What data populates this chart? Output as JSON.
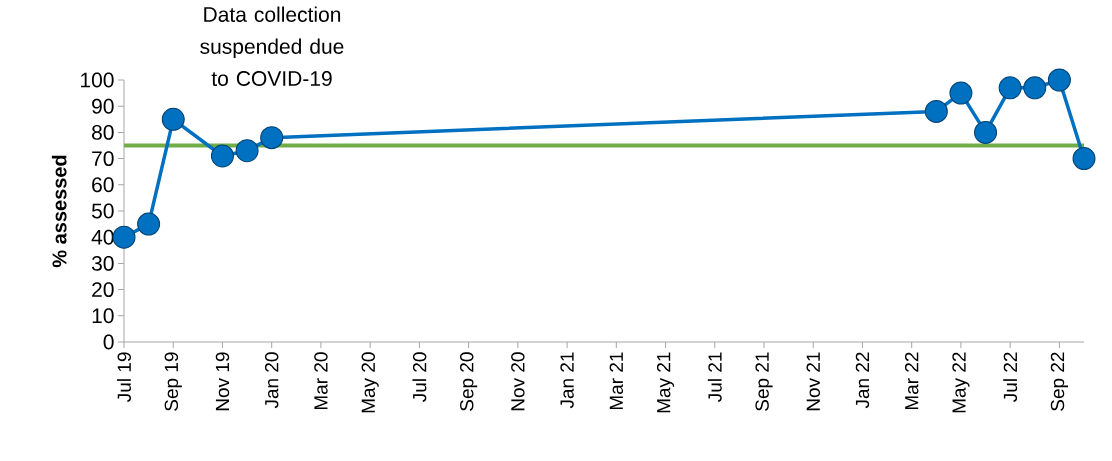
{
  "chart_data": {
    "type": "line",
    "ylabel": "% assessed",
    "x": [
      "2019-07",
      "2019-08",
      "2019-09",
      "2019-11",
      "2019-12",
      "2020-01",
      "2022-04",
      "2022-05",
      "2022-06",
      "2022-07",
      "2022-08",
      "2022-09",
      "2022-10"
    ],
    "series": [
      {
        "color": "#0070c0",
        "values": [
          40,
          45,
          85,
          71,
          73,
          78,
          88,
          95,
          80,
          97,
          97,
          100,
          70
        ]
      }
    ],
    "marker": "circle",
    "line_style": "solid",
    "grid": false,
    "xlim": [
      "2019-07",
      "2022-10"
    ],
    "xticks": [
      {
        "value": "2019-07",
        "label": "Jul 19"
      },
      {
        "value": "2019-09",
        "label": "Sep 19"
      },
      {
        "value": "2019-11",
        "label": "Nov 19"
      },
      {
        "value": "2020-01",
        "label": "Jan 20"
      },
      {
        "value": "2020-03",
        "label": "Mar 20"
      },
      {
        "value": "2020-05",
        "label": "May 20"
      },
      {
        "value": "2020-07",
        "label": "Jul 20"
      },
      {
        "value": "2020-09",
        "label": "Sep 20"
      },
      {
        "value": "2020-11",
        "label": "Nov 20"
      },
      {
        "value": "2021-01",
        "label": "Jan 21"
      },
      {
        "value": "2021-03",
        "label": "Mar 21"
      },
      {
        "value": "2021-05",
        "label": "May 21"
      },
      {
        "value": "2021-07",
        "label": "Jul 21"
      },
      {
        "value": "2021-09",
        "label": "Sep 21"
      },
      {
        "value": "2021-11",
        "label": "Nov 21"
      },
      {
        "value": "2022-01",
        "label": "Jan 22"
      },
      {
        "value": "2022-03",
        "label": "Mar 22"
      },
      {
        "value": "2022-05",
        "label": "May 22"
      },
      {
        "value": "2022-07",
        "label": "Jul 22"
      },
      {
        "value": "2022-09",
        "label": "Sep 22"
      }
    ],
    "ylim": [
      0,
      100
    ],
    "yticks": [
      0,
      10,
      20,
      30,
      40,
      50,
      60,
      70,
      80,
      90,
      100
    ],
    "ref_lines": [
      {
        "axis": "y",
        "value": 75,
        "color": "#70ad47"
      }
    ],
    "annotations": [
      "Data collection suspended due to COVID-19"
    ]
  }
}
